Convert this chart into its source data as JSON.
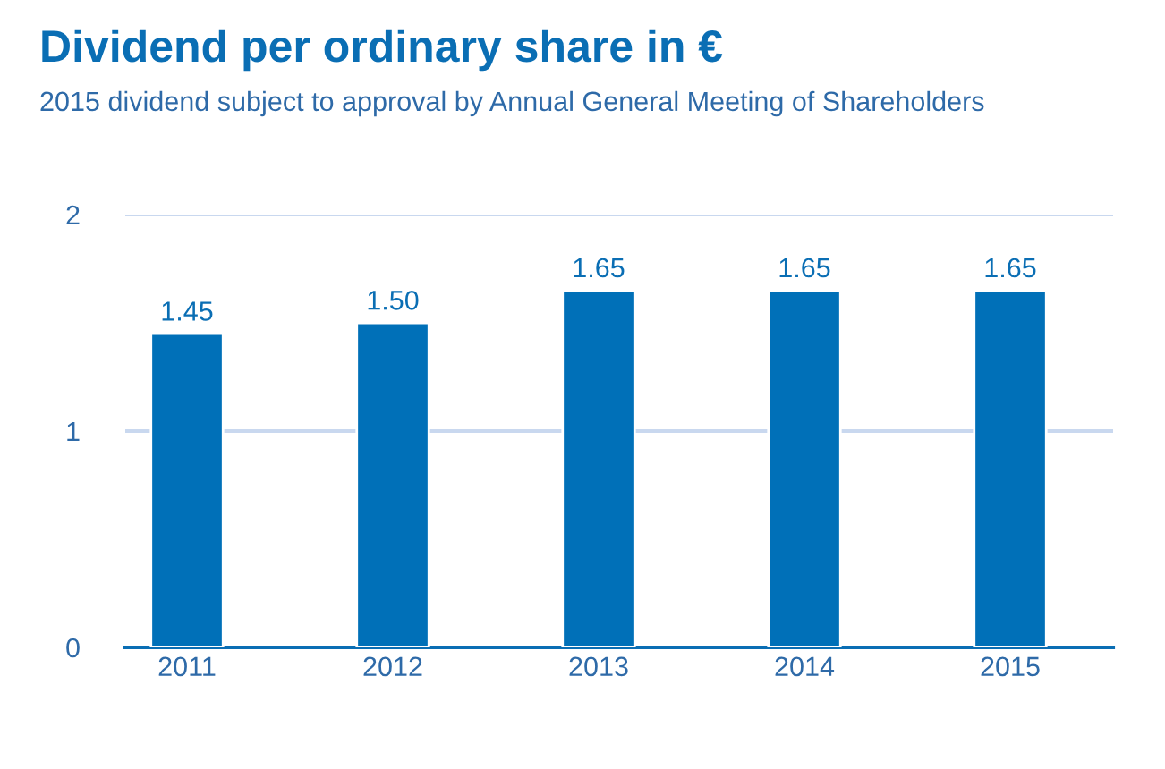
{
  "chart_data": {
    "type": "bar",
    "title": "Dividend per ordinary share in €",
    "subtitle": "2015 dividend subject to approval by Annual General Meeting of Shareholders",
    "categories": [
      "2011",
      "2012",
      "2013",
      "2014",
      "2015"
    ],
    "values": [
      1.45,
      1.5,
      1.65,
      1.65,
      1.65
    ],
    "value_labels": [
      "1.45",
      "1.50",
      "1.65",
      "1.65",
      "1.65"
    ],
    "color": "#0070b8",
    "ylim": [
      0,
      2
    ],
    "yticks": [
      0,
      1,
      2
    ],
    "grid": "y",
    "legend": false
  }
}
